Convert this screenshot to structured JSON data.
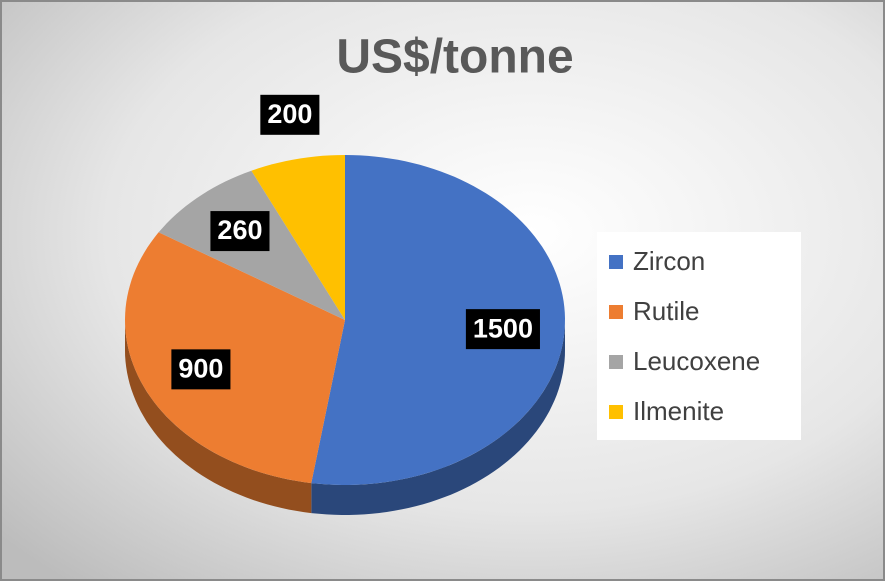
{
  "chart_data": {
    "type": "pie",
    "title": "US$/tonne",
    "categories": [
      "Zircon",
      "Rutile",
      "Leucoxene",
      "Ilmenite"
    ],
    "values": [
      1500,
      900,
      260,
      200
    ],
    "colors": [
      "#4472c4",
      "#ed7d31",
      "#a5a5a5",
      "#ffc000"
    ],
    "legend": "right"
  }
}
